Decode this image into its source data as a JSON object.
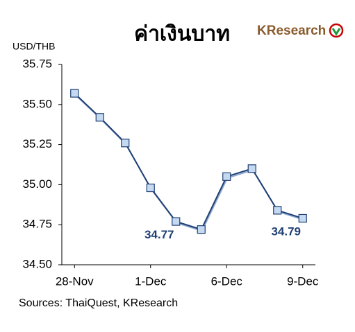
{
  "chart_data": {
    "type": "line",
    "title": "ค่าเงินบาท",
    "brand": "KResearch",
    "y_label": "USD/THB",
    "source": "Sources: ThaiQuest, KResearch",
    "categories": [
      "28-Nov",
      null,
      null,
      "1-Dec",
      null,
      null,
      "6-Dec",
      null,
      null,
      "9-Dec"
    ],
    "series": [
      {
        "color": "#1f3f74",
        "marker_color": "#c5d9f1",
        "values": [
          35.57,
          35.42,
          35.26,
          34.98,
          34.77,
          34.72,
          35.05,
          35.1,
          34.84,
          34.79
        ],
        "value_labels": [
          null,
          null,
          null,
          null,
          "34.77",
          null,
          null,
          null,
          null,
          "34.79"
        ]
      }
    ],
    "ylim": [
      34.5,
      35.75
    ],
    "yticks": [
      {
        "value": 34.5,
        "label": "34.50"
      },
      34.75,
      {
        "value": 35,
        "label": "35.00"
      },
      35.25,
      {
        "value": 35.5,
        "label": "35.50"
      },
      35.75
    ],
    "grid": false
  }
}
